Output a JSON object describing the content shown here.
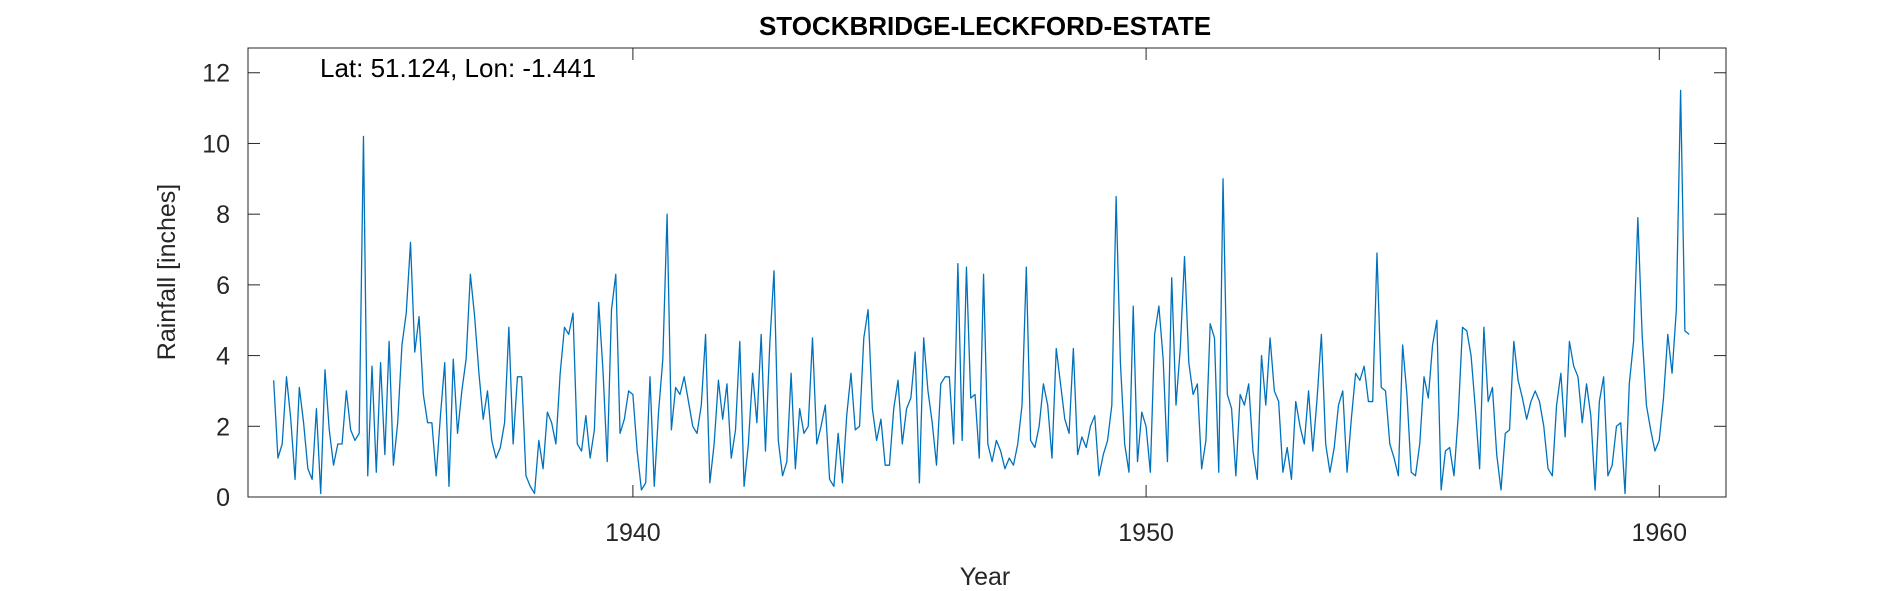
{
  "chart_data": {
    "type": "line",
    "title": "STOCKBRIDGE-LECKFORD-ESTATE",
    "annotation": "Lat: 51.124, Lon: -1.441",
    "xlabel": "Year",
    "ylabel": "Rainfall [inches]",
    "xlim": [
      1932.5,
      1961.3
    ],
    "ylim": [
      0,
      12.7
    ],
    "xticks": [
      1940,
      1950,
      1960
    ],
    "yticks": [
      0,
      2,
      4,
      6,
      8,
      10,
      12
    ],
    "grid": false,
    "color": "#0072BD",
    "series": [
      {
        "start": 1933.0,
        "step": 0.08333,
        "values": [
          3.3,
          1.1,
          1.5,
          3.4,
          2.2,
          0.5,
          3.1,
          2.1,
          0.8,
          0.5,
          2.5,
          0.1,
          3.6,
          1.9,
          0.9,
          1.5,
          1.5,
          3.0,
          1.9,
          1.6,
          1.8,
          10.2,
          0.6,
          3.7,
          0.7,
          3.8,
          1.2,
          4.4,
          0.9,
          2.1,
          4.3,
          5.2,
          7.2,
          4.1,
          5.1,
          2.9,
          2.1,
          2.1,
          0.6,
          2.3,
          3.8,
          0.3,
          3.9,
          1.8,
          3.0,
          3.9,
          6.3,
          5.1,
          3.5,
          2.2,
          3.0,
          1.6,
          1.1,
          1.4,
          2.1,
          4.8,
          1.5,
          3.4,
          3.4,
          0.6,
          0.3,
          0.1,
          1.6,
          0.8,
          2.4,
          2.1,
          1.5,
          3.5,
          4.8,
          4.6,
          5.2,
          1.5,
          1.3,
          2.3,
          1.1,
          1.9,
          5.5,
          3.6,
          1.0,
          5.3,
          6.3,
          1.8,
          2.2,
          3.0,
          2.9,
          1.3,
          0.2,
          0.4,
          3.4,
          0.3,
          2.4,
          3.9,
          8.0,
          1.9,
          3.1,
          2.9,
          3.4,
          2.7,
          2.0,
          1.8,
          2.6,
          4.6,
          0.4,
          1.5,
          3.3,
          2.2,
          3.2,
          1.1,
          1.9,
          4.4,
          0.3,
          1.5,
          3.5,
          2.1,
          4.6,
          1.3,
          4.3,
          6.4,
          1.6,
          0.6,
          1.0,
          3.5,
          0.8,
          2.5,
          1.8,
          2.0,
          4.5,
          1.5,
          2.0,
          2.6,
          0.5,
          0.3,
          1.8,
          0.4,
          2.3,
          3.5,
          1.9,
          2.0,
          4.5,
          5.3,
          2.5,
          1.6,
          2.2,
          0.9,
          0.9,
          2.5,
          3.3,
          1.5,
          2.5,
          2.8,
          4.1,
          0.4,
          4.5,
          3.0,
          2.1,
          0.9,
          3.2,
          3.4,
          3.4,
          1.5,
          6.6,
          1.6,
          6.5,
          2.8,
          2.9,
          1.1,
          6.3,
          1.5,
          1.0,
          1.6,
          1.3,
          0.8,
          1.1,
          0.9,
          1.5,
          2.6,
          6.5,
          1.6,
          1.4,
          2.0,
          3.2,
          2.6,
          1.1,
          4.2,
          3.2,
          2.2,
          1.8,
          4.2,
          1.2,
          1.7,
          1.4,
          2.0,
          2.3,
          0.6,
          1.2,
          1.6,
          2.6,
          8.5,
          3.8,
          1.5,
          0.7,
          5.4,
          1.0,
          2.4,
          2.0,
          0.7,
          4.6,
          5.4,
          3.9,
          1.0,
          6.2,
          2.6,
          4.2,
          6.8,
          3.8,
          2.9,
          3.2,
          0.8,
          1.6,
          4.9,
          4.5,
          0.7,
          9.0,
          2.9,
          2.5,
          0.6,
          2.9,
          2.6,
          3.2,
          1.3,
          0.5,
          4.0,
          2.6,
          4.5,
          3.0,
          2.7,
          0.7,
          1.4,
          0.5,
          2.7,
          2.0,
          1.5,
          3.0,
          1.3,
          2.8,
          4.6,
          1.5,
          0.7,
          1.4,
          2.6,
          3.0,
          0.7,
          2.2,
          3.5,
          3.3,
          3.7,
          2.7,
          2.7,
          6.9,
          3.1,
          3.0,
          1.5,
          1.1,
          0.6,
          4.3,
          2.9,
          0.7,
          0.6,
          1.5,
          3.4,
          2.8,
          4.3,
          5.0,
          0.2,
          1.3,
          1.4,
          0.6,
          2.3,
          4.8,
          4.7,
          4.0,
          2.5,
          0.8,
          4.8,
          2.7,
          3.1,
          1.2,
          0.2,
          1.8,
          1.9,
          4.4,
          3.3,
          2.8,
          2.2,
          2.7,
          3.0,
          2.7,
          2.0,
          0.8,
          0.6,
          2.6,
          3.5,
          1.7,
          4.4,
          3.7,
          3.4,
          2.1,
          3.2,
          2.3,
          0.2,
          2.7,
          3.4,
          0.6,
          0.9,
          2.0,
          2.1,
          0.1,
          3.2,
          4.4,
          7.9,
          4.6,
          2.6,
          1.9,
          1.3,
          1.6,
          2.8,
          4.6,
          3.5,
          5.3,
          11.5,
          4.7,
          4.6
        ]
      }
    ]
  }
}
